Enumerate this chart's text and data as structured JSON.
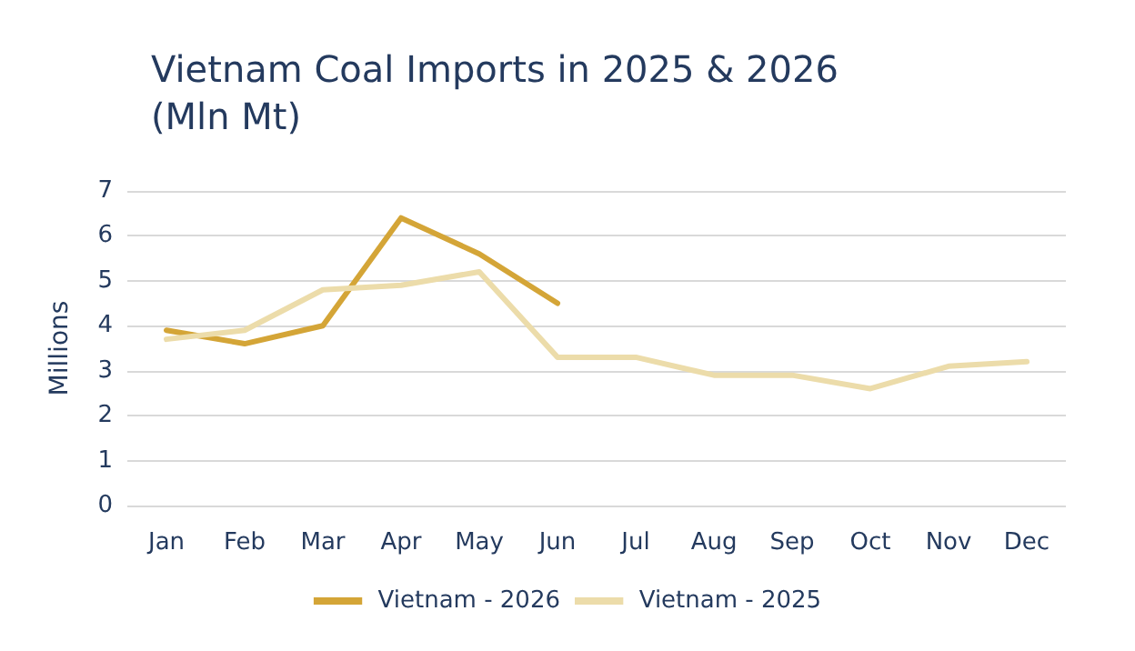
{
  "chart_data": {
    "type": "line",
    "title": "Vietnam Coal Imports in 2025 & 2026 (Mln Mt)",
    "ylabel": "Millions",
    "categories": [
      "Jan",
      "Feb",
      "Mar",
      "Apr",
      "May",
      "Jun",
      "Jul",
      "Aug",
      "Sep",
      "Oct",
      "Nov",
      "Dec"
    ],
    "series": [
      {
        "name": "Vietnam - 2026",
        "color": "#d4a537",
        "values": [
          3.9,
          3.6,
          4.0,
          6.4,
          5.6,
          4.5,
          null,
          null,
          null,
          null,
          null,
          null
        ]
      },
      {
        "name": "Vietnam - 2025",
        "color": "#ecdcaa",
        "values": [
          3.7,
          3.9,
          4.8,
          4.9,
          5.2,
          3.3,
          3.3,
          2.9,
          2.9,
          2.6,
          3.1,
          3.2
        ]
      }
    ],
    "ylim": [
      0,
      7
    ],
    "yticks": [
      0,
      1,
      2,
      3,
      4,
      5,
      6,
      7
    ],
    "grid": "y",
    "legend": "bottom",
    "marker": "none",
    "line_style": "solid"
  }
}
